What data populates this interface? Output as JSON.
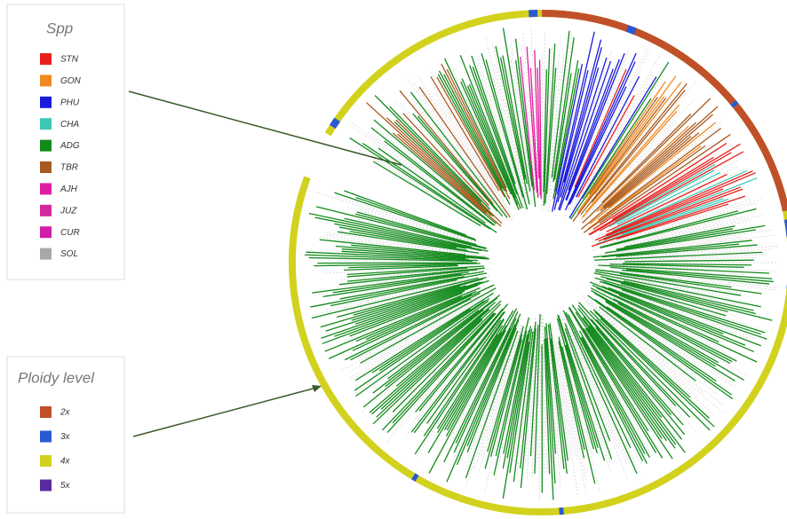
{
  "legends": [
    {
      "title": "Spp",
      "items": [
        {
          "label": "STN",
          "color": "#e8201c"
        },
        {
          "label": "GON",
          "color": "#f08a1e"
        },
        {
          "label": "PHU",
          "color": "#1a1adc"
        },
        {
          "label": "CHA",
          "color": "#3cc8b4"
        },
        {
          "label": "ADG",
          "color": "#138a1c"
        },
        {
          "label": "TBR",
          "color": "#a85a1e"
        },
        {
          "label": "AJH",
          "color": "#e01ea0"
        },
        {
          "label": "JUZ",
          "color": "#d4289c"
        },
        {
          "label": "CUR",
          "color": "#d01ea8"
        },
        {
          "label": "SOL",
          "color": "#a8a8a8"
        }
      ]
    },
    {
      "title": "Ploidy level",
      "items": [
        {
          "label": "2x",
          "color": "#c0502a"
        },
        {
          "label": "3x",
          "color": "#2a5ad0"
        },
        {
          "label": "4x",
          "color": "#d2d21e"
        },
        {
          "label": "5x",
          "color": "#5a2aa0"
        }
      ]
    }
  ]
}
